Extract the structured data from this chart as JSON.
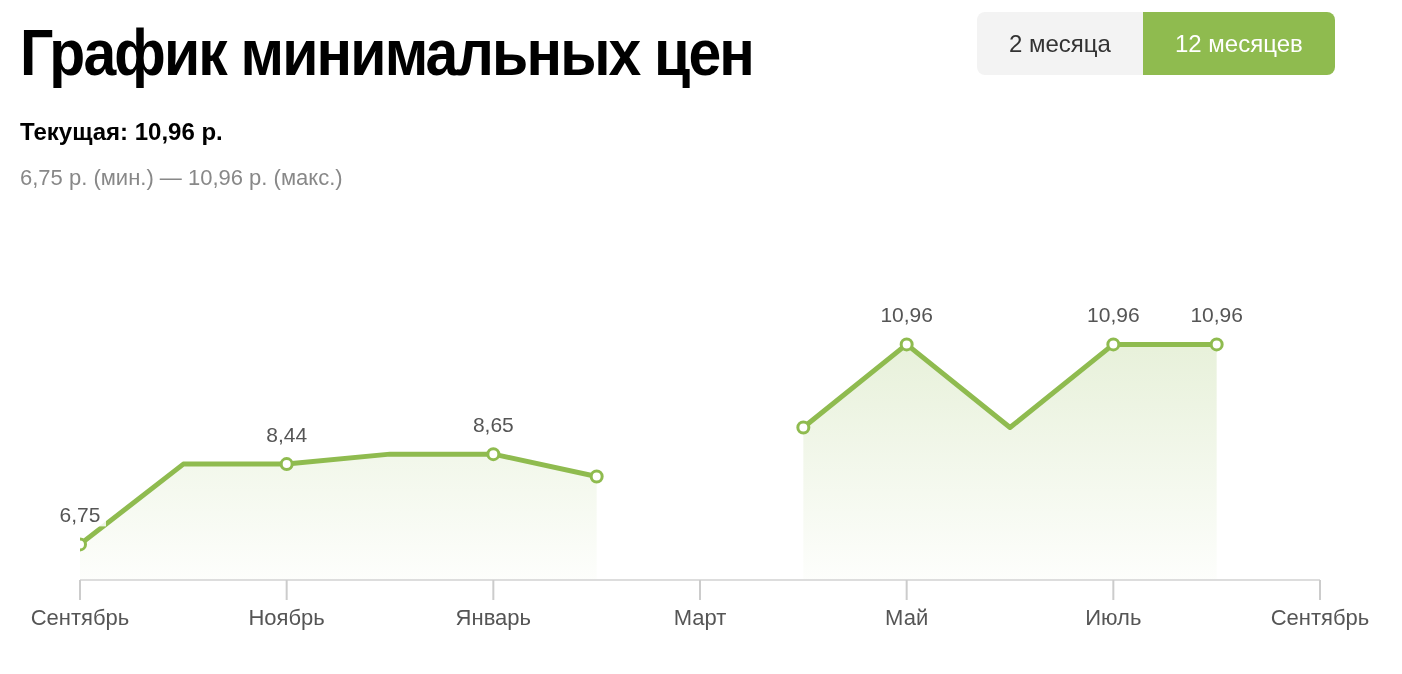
{
  "chart_data": {
    "type": "area",
    "title": "График минимальных цен",
    "subtitle": "Текущая: 10,96 р.",
    "annotations": [
      "6,75 р. (мин.) — 10,96 р. (макс.)",
      "2 месяца",
      "12 месяцев"
    ],
    "categories": [
      "Сентябрь",
      null,
      "Ноябрь",
      null,
      "Январь",
      null,
      "Март",
      null,
      "Май",
      null,
      "Июль",
      null,
      "Сентябрь"
    ],
    "series": [
      {
        "color": "#8fbb4f",
        "values": [
          6.75,
          8.44,
          8.44,
          8.65,
          8.65,
          8.18,
          null,
          9.21,
          10.96,
          9.21,
          10.96,
          10.96,
          null
        ],
        "value_labels": [
          "6,75",
          null,
          "8,44",
          null,
          "8,65",
          null,
          null,
          null,
          "10,96",
          null,
          "10,96",
          "10,96",
          null
        ]
      }
    ],
    "marker": "circle"
  }
}
